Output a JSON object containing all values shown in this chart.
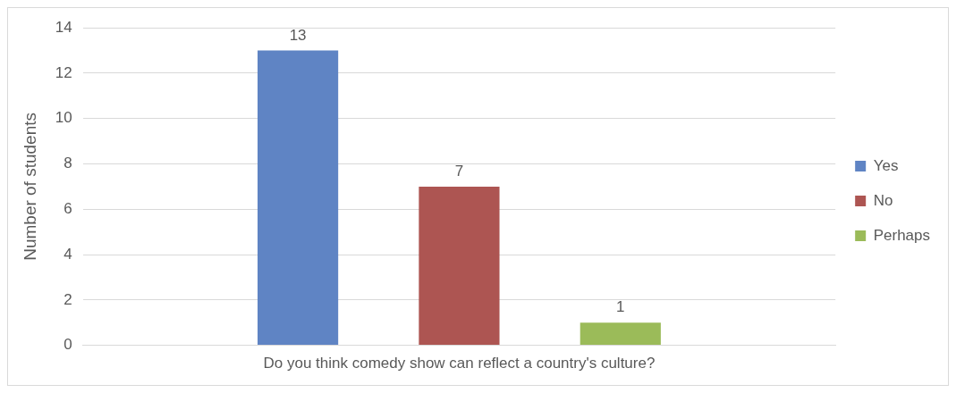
{
  "chart_data": {
    "type": "bar",
    "categories": [
      "Do you think comedy show can reflect a country's culture?"
    ],
    "ylabel": "Number of students",
    "series": [
      {
        "name": "Yes",
        "color": "#5f84c4",
        "values": [
          13
        ]
      },
      {
        "name": "No",
        "color": "#ad5552",
        "values": [
          7
        ]
      },
      {
        "name": "Perhaps",
        "color": "#9bbb59",
        "values": [
          1
        ]
      }
    ],
    "ylim": [
      0,
      14
    ],
    "yticks": [
      0,
      2,
      4,
      6,
      8,
      10,
      12,
      14
    ],
    "grid": "y",
    "legend": "right",
    "data_labels": true
  }
}
